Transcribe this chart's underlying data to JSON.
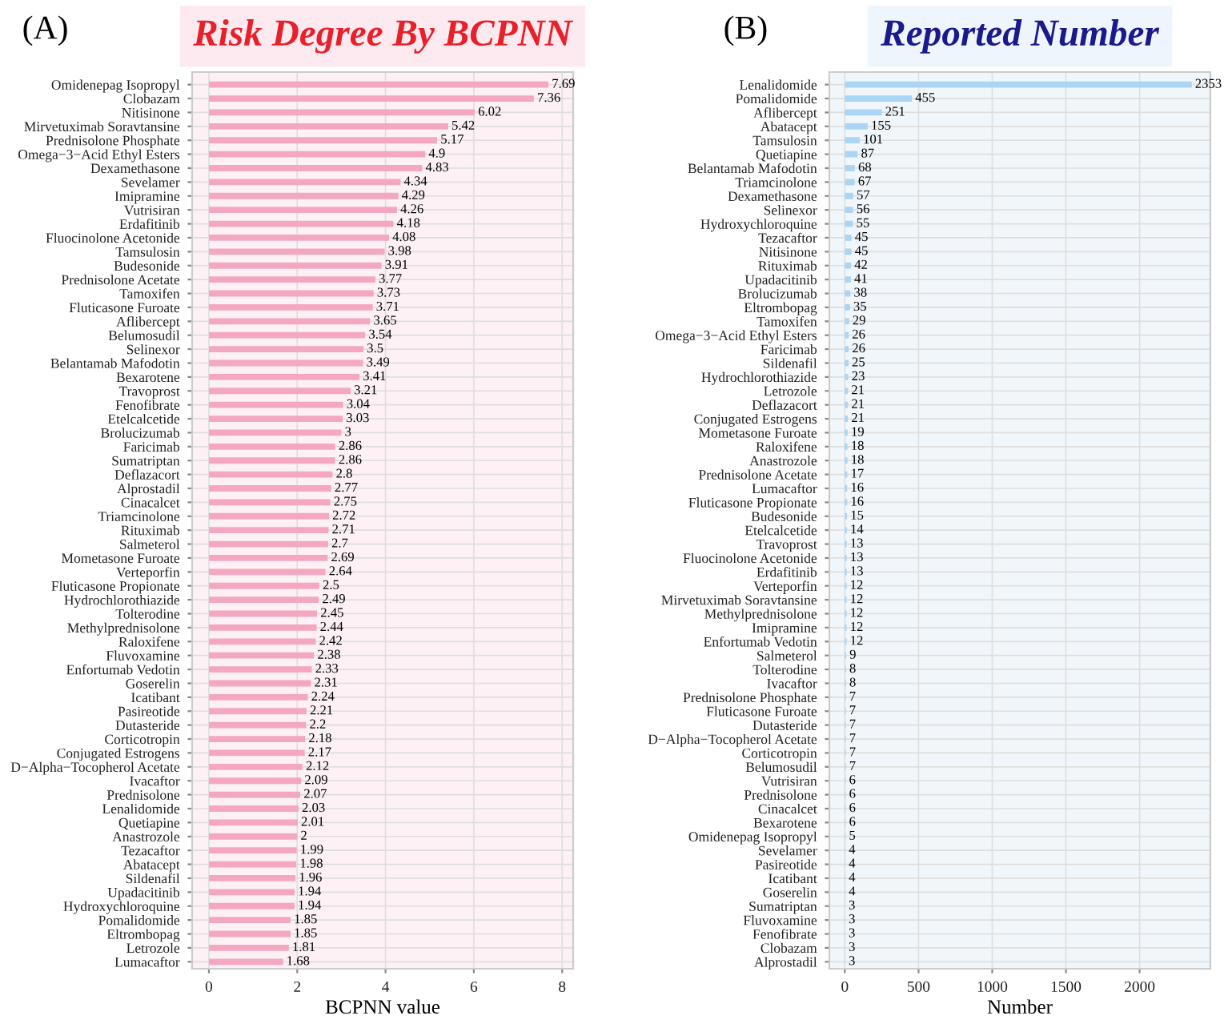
{
  "chart_data": [
    {
      "type": "bar",
      "orientation": "horizontal",
      "title": "Risk Degree By BCPNN",
      "xlabel": "BCPNN value",
      "annotations": [
        "(A)"
      ],
      "color": "#f4a7c2",
      "data_labels": true,
      "grid": true,
      "xlim": [
        -0.38,
        8.25
      ],
      "xticks": [
        0,
        2,
        4,
        6,
        8
      ],
      "categories": [
        "Omidenepag Isopropyl",
        "Clobazam",
        "Nitisinone",
        "Mirvetuximab Soravtansine",
        "Prednisolone Phosphate",
        "Omega−3−Acid Ethyl Esters",
        "Dexamethasone",
        "Sevelamer",
        "Imipramine",
        "Vutrisiran",
        "Erdafitinib",
        "Fluocinolone Acetonide",
        "Tamsulosin",
        "Budesonide",
        "Prednisolone Acetate",
        "Tamoxifen",
        "Fluticasone Furoate",
        "Aflibercept",
        "Belumosudil",
        "Selinexor",
        "Belantamab Mafodotin",
        "Bexarotene",
        "Travoprost",
        "Fenofibrate",
        "Etelcalcetide",
        "Brolucizumab",
        "Faricimab",
        "Sumatriptan",
        "Deflazacort",
        "Alprostadil",
        "Cinacalcet",
        "Triamcinolone",
        "Rituximab",
        "Salmeterol",
        "Mometasone Furoate",
        "Verteporfin",
        "Fluticasone Propionate",
        "Hydrochlorothiazide",
        "Tolterodine",
        "Methylprednisolone",
        "Raloxifene",
        "Fluvoxamine",
        "Enfortumab Vedotin",
        "Goserelin",
        "Icatibant",
        "Pasireotide",
        "Dutasteride",
        "Corticotropin",
        "Conjugated Estrogens",
        "D−Alpha−Tocopherol Acetate",
        "Ivacaftor",
        "Prednisolone",
        "Lenalidomide",
        "Quetiapine",
        "Anastrozole",
        "Tezacaftor",
        "Abatacept",
        "Sildenafil",
        "Upadacitinib",
        "Hydroxychloroquine",
        "Pomalidomide",
        "Eltrombopag",
        "Letrozole",
        "Lumacaftor"
      ],
      "values": [
        7.69,
        7.36,
        6.02,
        5.42,
        5.17,
        4.9,
        4.83,
        4.34,
        4.29,
        4.26,
        4.18,
        4.08,
        3.98,
        3.91,
        3.77,
        3.73,
        3.71,
        3.65,
        3.54,
        3.5,
        3.49,
        3.41,
        3.21,
        3.04,
        3.03,
        3,
        2.86,
        2.86,
        2.8,
        2.77,
        2.75,
        2.72,
        2.71,
        2.7,
        2.69,
        2.64,
        2.5,
        2.49,
        2.45,
        2.44,
        2.42,
        2.38,
        2.33,
        2.31,
        2.24,
        2.21,
        2.2,
        2.18,
        2.17,
        2.12,
        2.09,
        2.07,
        2.03,
        2.01,
        2,
        1.99,
        1.98,
        1.96,
        1.94,
        1.94,
        1.85,
        1.85,
        1.81,
        1.68
      ]
    },
    {
      "type": "bar",
      "orientation": "horizontal",
      "title": "Reported Number",
      "xlabel": "Number",
      "annotations": [
        "(B)"
      ],
      "color": "#abd5f5",
      "data_labels": true,
      "grid": true,
      "xlim": [
        -105,
        2480
      ],
      "xticks": [
        0,
        500,
        1000,
        1500,
        2000
      ],
      "categories": [
        "Lenalidomide",
        "Pomalidomide",
        "Aflibercept",
        "Abatacept",
        "Tamsulosin",
        "Quetiapine",
        "Belantamab Mafodotin",
        "Triamcinolone",
        "Dexamethasone",
        "Selinexor",
        "Hydroxychloroquine",
        "Tezacaftor",
        "Nitisinone",
        "Rituximab",
        "Upadacitinib",
        "Brolucizumab",
        "Eltrombopag",
        "Tamoxifen",
        "Omega−3−Acid Ethyl Esters",
        "Faricimab",
        "Sildenafil",
        "Hydrochlorothiazide",
        "Letrozole",
        "Deflazacort",
        "Conjugated Estrogens",
        "Mometasone Furoate",
        "Raloxifene",
        "Anastrozole",
        "Prednisolone Acetate",
        "Lumacaftor",
        "Fluticasone Propionate",
        "Budesonide",
        "Etelcalcetide",
        "Travoprost",
        "Fluocinolone Acetonide",
        "Erdafitinib",
        "Verteporfin",
        "Mirvetuximab Soravtansine",
        "Methylprednisolone",
        "Imipramine",
        "Enfortumab Vedotin",
        "Salmeterol",
        "Tolterodine",
        "Ivacaftor",
        "Prednisolone Phosphate",
        "Fluticasone Furoate",
        "Dutasteride",
        "D−Alpha−Tocopherol Acetate",
        "Corticotropin",
        "Belumosudil",
        "Vutrisiran",
        "Prednisolone",
        "Cinacalcet",
        "Bexarotene",
        "Omidenepag Isopropyl",
        "Sevelamer",
        "Pasireotide",
        "Icatibant",
        "Goserelin",
        "Sumatriptan",
        "Fluvoxamine",
        "Fenofibrate",
        "Clobazam",
        "Alprostadil"
      ],
      "values": [
        2353,
        455,
        251,
        155,
        101,
        87,
        68,
        67,
        57,
        56,
        55,
        45,
        45,
        42,
        41,
        38,
        35,
        29,
        26,
        26,
        25,
        23,
        21,
        21,
        21,
        19,
        18,
        18,
        17,
        16,
        16,
        15,
        14,
        13,
        13,
        13,
        12,
        12,
        12,
        12,
        12,
        9,
        8,
        8,
        7,
        7,
        7,
        7,
        7,
        7,
        6,
        6,
        6,
        6,
        5,
        4,
        4,
        4,
        4,
        3,
        3,
        3,
        3,
        3
      ]
    }
  ]
}
